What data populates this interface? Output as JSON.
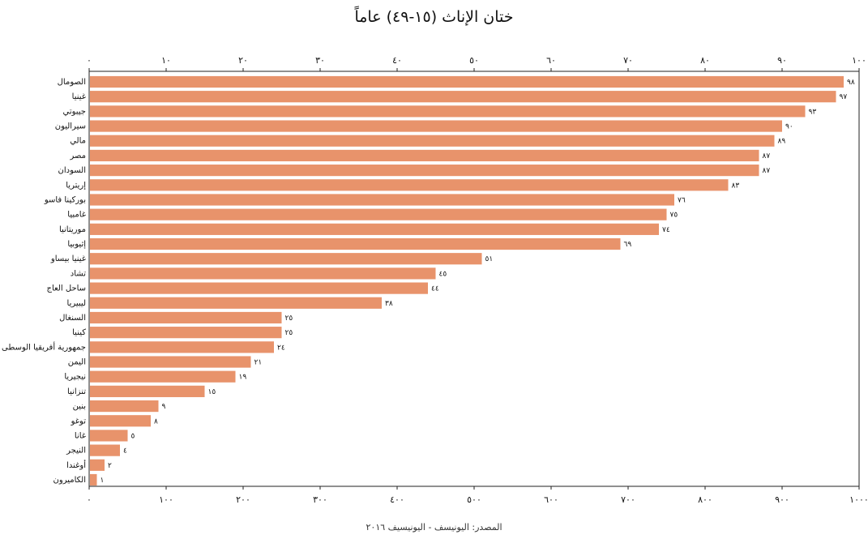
{
  "chart_data": {
    "type": "bar",
    "orientation": "horizontal",
    "title": "ختان الإناث (١٥-٤٩) عاماً",
    "source": "المصدر: اليونيسف - اليونيسيف ٢٠١٦",
    "xlim": [
      0,
      100
    ],
    "x_ticks": [
      "٠",
      "١٠",
      "٢٠",
      "٣٠",
      "٤٠",
      "٥٠",
      "٦٠",
      "٧٠",
      "٨٠",
      "٩٠",
      "١٠٠"
    ],
    "x_ticks_bottom": [
      "٠",
      "١٠٠",
      "٢٠٠",
      "٣٠٠",
      "٤٠٠",
      "٥٠٠",
      "٦٠٠",
      "٧٠٠",
      "٨٠٠",
      "٩٠٠",
      "١٠٠٠"
    ],
    "bar_color": "#E8936B",
    "categories": [
      "الصومال",
      "غينيا",
      "جيبوتي",
      "سيراليون",
      "مالي",
      "مصر",
      "السودان",
      "إريتريا",
      "بوركينا فاسو",
      "غامبيا",
      "موريتانيا",
      "إثيوبيا",
      "غينيا بيساو",
      "تشاد",
      "ساحل العاج",
      "ليبيريا",
      "السنغال",
      "كينيا",
      "جمهورية أفريقيا الوسطى",
      "اليمن",
      "نيجيريا",
      "تنزانيا",
      "بنين",
      "توغو",
      "غانا",
      "النيجر",
      "أوغندا",
      "الكاميرون"
    ],
    "values": [
      98,
      97,
      93,
      90,
      89,
      87,
      87,
      83,
      76,
      75,
      74,
      69,
      51,
      45,
      44,
      38,
      25,
      25,
      24,
      21,
      19,
      15,
      9,
      8,
      5,
      4,
      2,
      1
    ],
    "value_labels": [
      "٩٨",
      "٩٧",
      "٩٣",
      "٩٠",
      "٨٩",
      "٨٧",
      "٨٧",
      "٨٣",
      "٧٦",
      "٧٥",
      "٧٤",
      "٦٩",
      "٥١",
      "٤٥",
      "٤٤",
      "٣٨",
      "٢٥",
      "٢٥",
      "٢٤",
      "٢١",
      "١٩",
      "١٥",
      "٩",
      "٨",
      "٥",
      "٤",
      "٢",
      "١"
    ]
  }
}
